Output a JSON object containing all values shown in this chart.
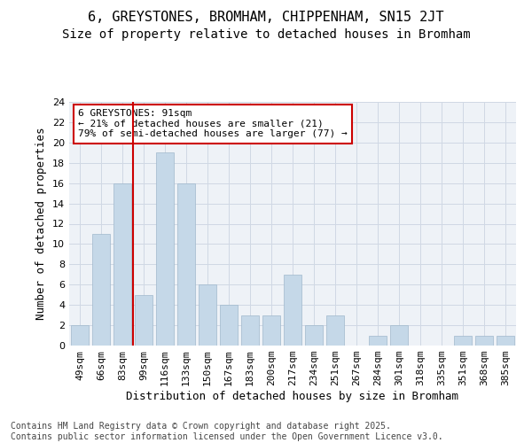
{
  "title1": "6, GREYSTONES, BROMHAM, CHIPPENHAM, SN15 2JT",
  "title2": "Size of property relative to detached houses in Bromham",
  "xlabel": "Distribution of detached houses by size in Bromham",
  "ylabel": "Number of detached properties",
  "categories": [
    "49sqm",
    "66sqm",
    "83sqm",
    "99sqm",
    "116sqm",
    "133sqm",
    "150sqm",
    "167sqm",
    "183sqm",
    "200sqm",
    "217sqm",
    "234sqm",
    "251sqm",
    "267sqm",
    "284sqm",
    "301sqm",
    "318sqm",
    "335sqm",
    "351sqm",
    "368sqm",
    "385sqm"
  ],
  "values": [
    2,
    11,
    16,
    5,
    19,
    16,
    6,
    4,
    3,
    3,
    7,
    2,
    3,
    0,
    1,
    2,
    0,
    0,
    1,
    1,
    1
  ],
  "bar_color": "#c5d8e8",
  "bar_edge_color": "#a0b8cc",
  "highlight_line_index": 3,
  "annotation_text": "6 GREYSTONES: 91sqm\n← 21% of detached houses are smaller (21)\n79% of semi-detached houses are larger (77) →",
  "annotation_box_color": "#ffffff",
  "annotation_box_edge_color": "#cc0000",
  "ylim": [
    0,
    24
  ],
  "yticks": [
    0,
    2,
    4,
    6,
    8,
    10,
    12,
    14,
    16,
    18,
    20,
    22,
    24
  ],
  "grid_color": "#d0d8e4",
  "background_color": "#eef2f7",
  "fig_background": "#ffffff",
  "footer_text": "Contains HM Land Registry data © Crown copyright and database right 2025.\nContains public sector information licensed under the Open Government Licence v3.0.",
  "title1_fontsize": 11,
  "title2_fontsize": 10,
  "xlabel_fontsize": 9,
  "ylabel_fontsize": 9,
  "tick_fontsize": 8,
  "annotation_fontsize": 8,
  "footer_fontsize": 7
}
